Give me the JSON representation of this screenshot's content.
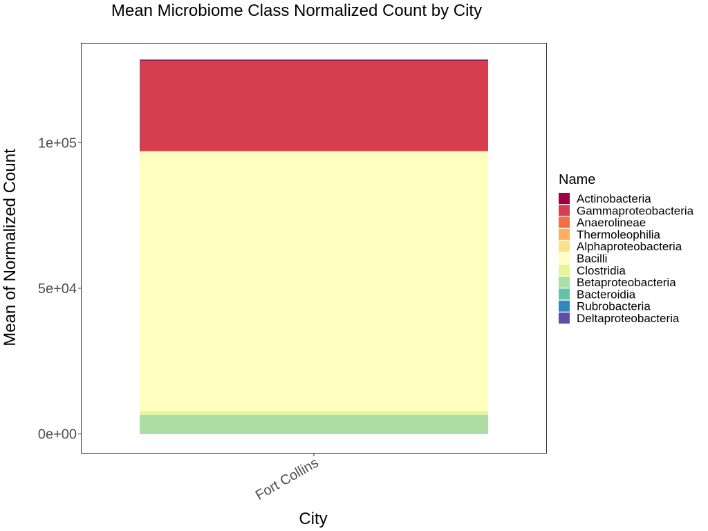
{
  "chart_data": {
    "type": "bar",
    "stacked": true,
    "title": "Mean Microbiome Class Normalized Count by City",
    "xlabel": "City",
    "ylabel": "Mean of Normalized Count",
    "categories": [
      "Fort Collins"
    ],
    "ylim": [
      -6500,
      134000
    ],
    "y_ticks": [
      0,
      50000,
      100000
    ],
    "y_tick_labels": [
      "0e+00",
      "5e+04",
      "1e+05"
    ],
    "grid": false,
    "legend_title": "Name",
    "legend_position": "right",
    "series": [
      {
        "name": "Actinobacteria",
        "color": "#9E0142",
        "values": [
          400
        ]
      },
      {
        "name": "Gammaproteobacteria",
        "color": "#D53E4F",
        "values": [
          31000
        ]
      },
      {
        "name": "Anaerolineae",
        "color": "#F46D43",
        "values": [
          0
        ]
      },
      {
        "name": "Thermoleophilia",
        "color": "#FDAE61",
        "values": [
          0
        ]
      },
      {
        "name": "Alphaproteobacteria",
        "color": "#FEE08B",
        "values": [
          300
        ]
      },
      {
        "name": "Bacilli",
        "color": "#FFFFBF",
        "values": [
          89000
        ]
      },
      {
        "name": "Clostridia",
        "color": "#E6F598",
        "values": [
          1200
        ]
      },
      {
        "name": "Betaproteobacteria",
        "color": "#ABDDA4",
        "values": [
          6400
        ]
      },
      {
        "name": "Bacteroidia",
        "color": "#66C2A5",
        "values": [
          200
        ]
      },
      {
        "name": "Rubrobacteria",
        "color": "#3288BD",
        "values": [
          0
        ]
      },
      {
        "name": "Deltaproteobacteria",
        "color": "#5E4FA2",
        "values": [
          0
        ]
      }
    ]
  }
}
